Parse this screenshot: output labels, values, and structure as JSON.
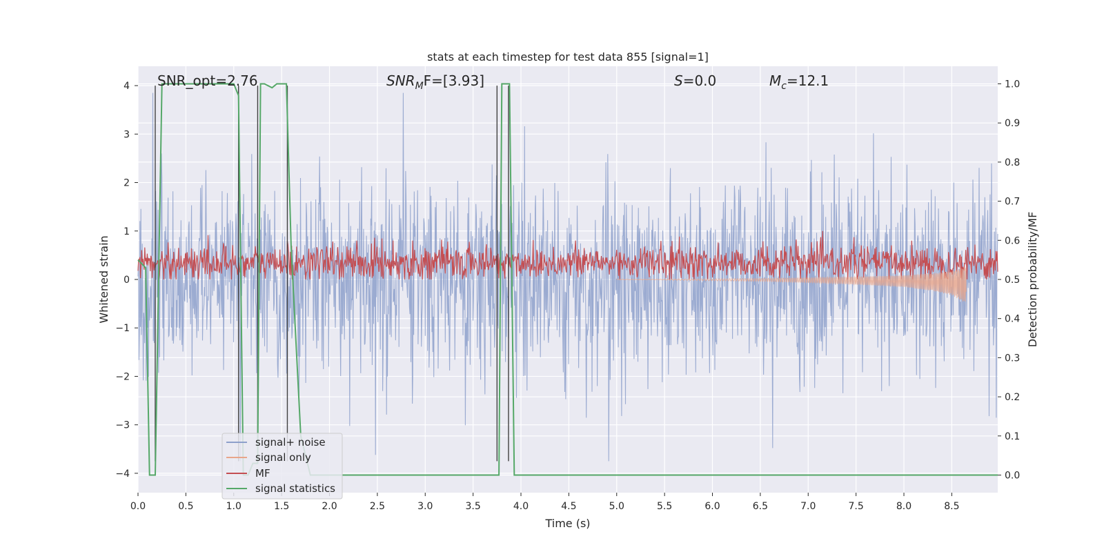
{
  "chart_data": {
    "type": "line",
    "title": "stats at each timestep for test data 855 [signal=1]",
    "xlabel": "Time (s)",
    "ylabel": "Whitened strain",
    "y2label": "Detection probability/MF",
    "xlim": [
      0.0,
      8.98
    ],
    "ylim": [
      -4.4,
      4.4
    ],
    "y2lim": [
      -0.045,
      1.045
    ],
    "x_ticks": [
      "0.0",
      "0.5",
      "1.0",
      "1.5",
      "2.0",
      "2.5",
      "3.0",
      "3.5",
      "4.0",
      "4.5",
      "5.0",
      "5.5",
      "6.0",
      "6.5",
      "7.0",
      "7.5",
      "8.0",
      "8.5"
    ],
    "y_ticks": [
      "−4",
      "−3",
      "−2",
      "−1",
      "0",
      "1",
      "2",
      "3",
      "4"
    ],
    "y2_ticks": [
      "0.0",
      "0.1",
      "0.2",
      "0.3",
      "0.4",
      "0.5",
      "0.6",
      "0.7",
      "0.8",
      "0.9",
      "1.0"
    ],
    "grid": true,
    "legend_position": "lower-left",
    "annotations": {
      "snr_opt": "SNR_opt=2.76",
      "snr_mf_sym": "SNR",
      "snr_mf_sub": "M",
      "snr_mf_rest": "F=[3.93]",
      "s_sym": "S",
      "s_rest": "=0.0",
      "mc_sym": "M",
      "mc_sub": "c",
      "mc_rest": "=12.1"
    },
    "series": [
      {
        "name": "signal+ noise",
        "color": "#8da0cb",
        "axis": "left",
        "note_shape": "dense noise, roughly symmetric, peaks to about ±3.8",
        "envelope": {
          "upper_typical": 1.8,
          "lower_typical": -2.0,
          "max_peak": 3.85,
          "min_peak": -3.75
        }
      },
      {
        "name": "signal only",
        "color": "#e8a58a",
        "axis": "left",
        "note_shape": "chirp growing in amplitude toward 8.65 s",
        "x": [
          5.5,
          6.5,
          7.0,
          7.5,
          8.0,
          8.3,
          8.5,
          8.65
        ],
        "amplitude": [
          0.01,
          0.03,
          0.05,
          0.08,
          0.12,
          0.18,
          0.25,
          0.38
        ]
      },
      {
        "name": "MF",
        "color": "#c44e52",
        "axis": "left",
        "range": [
          0.0,
          1.0
        ],
        "typical": 0.35
      },
      {
        "name": "signal statistics",
        "color": "#55a868",
        "axis": "right",
        "x": [
          0.0,
          0.08,
          0.12,
          0.18,
          0.25,
          0.5,
          1.0,
          1.05,
          1.1,
          1.15,
          1.2,
          1.25,
          1.28,
          1.32,
          1.4,
          1.45,
          1.5,
          1.55,
          1.6,
          1.7,
          1.8,
          1.85,
          2.0,
          3.0,
          3.5,
          3.77,
          3.8,
          3.88,
          3.93,
          5.0,
          6.0,
          7.0,
          8.0,
          8.98
        ],
        "values": [
          0.55,
          0.53,
          0.0,
          0.0,
          1.0,
          1.0,
          1.0,
          0.97,
          0.0,
          0.0,
          0.03,
          0.03,
          1.0,
          1.0,
          0.99,
          1.0,
          1.0,
          1.0,
          0.58,
          0.1,
          0.0,
          0.0,
          0.0,
          0.0,
          0.0,
          0.0,
          1.0,
          1.0,
          0.0,
          0.0,
          0.0,
          0.0,
          0.0,
          0.0
        ]
      }
    ],
    "vertical_lines": {
      "color": "#404040",
      "x": [
        0.18,
        1.05,
        1.25,
        1.56,
        3.75,
        3.87
      ]
    }
  }
}
